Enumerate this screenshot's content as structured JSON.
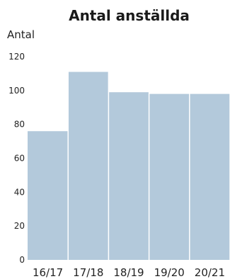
{
  "chart_data": {
    "type": "bar",
    "title": "Antal anställda",
    "ylabel": "Antal",
    "xlabel": "",
    "categories": [
      "16/17",
      "17/18",
      "18/19",
      "19/20",
      "20/21"
    ],
    "values": [
      76,
      111,
      99,
      98,
      98
    ],
    "ylim": [
      0,
      120
    ],
    "yticks": [
      0,
      20,
      40,
      60,
      80,
      100,
      120
    ],
    "bar_color": "#b3c9db",
    "grid": false
  }
}
